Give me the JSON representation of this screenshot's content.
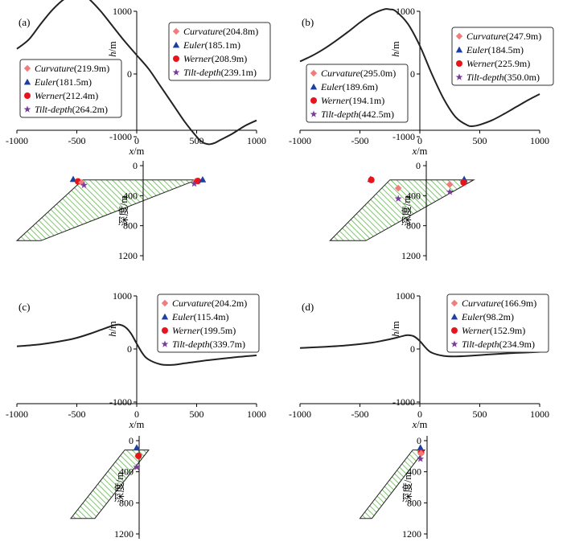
{
  "figure": {
    "x_axis_label_var": "x",
    "x_axis_label_unit": "/m",
    "y_axis_label_var": "h",
    "y_axis_label_unit": "/m",
    "depth_label": "深度/m",
    "x_ticks": [
      -1000,
      -500,
      0,
      500,
      1000
    ],
    "h_ticks": [
      1000,
      0,
      -1000
    ],
    "depth_ticks": [
      0,
      400,
      800,
      1200
    ]
  },
  "colors": {
    "curve": "#222222",
    "curvature": "#f07c7c",
    "euler": "#1f3f9e",
    "werner": "#e8141c",
    "tilt": "#7a3aa0",
    "body_stripe": "#5fb84a",
    "body_outline": "#222222"
  },
  "marker_shapes": {
    "curvature": "diamond",
    "euler": "triangle",
    "werner": "circle",
    "tilt": "star"
  },
  "chart_data": [
    {
      "type": "line",
      "panel": "(a)",
      "xlim": [
        -1000,
        1000
      ],
      "ylim": [
        -1100,
        1250
      ],
      "depth_lim": [
        0,
        1200
      ],
      "x": [
        -1000,
        -900,
        -800,
        -700,
        -600,
        -500,
        -450,
        -400,
        -300,
        -200,
        -100,
        0,
        100,
        200,
        300,
        400,
        500,
        550,
        600,
        650,
        700,
        800,
        900,
        1000
      ],
      "h": [
        400,
        550,
        800,
        1030,
        1200,
        1270,
        1260,
        1200,
        1000,
        760,
        520,
        300,
        80,
        -200,
        -480,
        -760,
        -1000,
        -1090,
        -1120,
        -1100,
        -1050,
        -950,
        -830,
        -740
      ],
      "body": [
        [
          -1000,
          1000
        ],
        [
          -800,
          1000
        ],
        [
          500,
          190
        ],
        [
          -450,
          190
        ]
      ],
      "legends": [
        {
          "entries": [
            {
              "method": "Curvature",
              "value": "(204.8m)"
            },
            {
              "method": "Euler",
              "value": "(185.1m)"
            },
            {
              "method": "Werner",
              "value": "(208.9m)"
            },
            {
              "method": "Tilt-depth",
              "value": "(239.1m)"
            }
          ]
        },
        {
          "entries": [
            {
              "method": "Curvature",
              "value": "(219.9m)"
            },
            {
              "method": "Euler",
              "value": "(181.5m)"
            },
            {
              "method": "Werner",
              "value": "(212.4m)"
            },
            {
              "method": "Tilt-depth",
              "value": "(264.2m)"
            }
          ]
        }
      ],
      "points": [
        {
          "kind": "euler",
          "x": -530,
          "d": 180
        },
        {
          "kind": "werner",
          "x": -490,
          "d": 210
        },
        {
          "kind": "curvature",
          "x": -460,
          "d": 225
        },
        {
          "kind": "tilt",
          "x": -440,
          "d": 260
        },
        {
          "kind": "curvature",
          "x": 490,
          "d": 210
        },
        {
          "kind": "werner",
          "x": 510,
          "d": 205
        },
        {
          "kind": "euler",
          "x": 550,
          "d": 185
        },
        {
          "kind": "tilt",
          "x": 480,
          "d": 240
        }
      ]
    },
    {
      "type": "line",
      "panel": "(b)",
      "xlim": [
        -1000,
        1000
      ],
      "ylim": [
        -1100,
        1250
      ],
      "depth_lim": [
        0,
        1200
      ],
      "x": [
        -1000,
        -900,
        -800,
        -700,
        -600,
        -500,
        -400,
        -300,
        -250,
        -200,
        -100,
        0,
        100,
        200,
        300,
        400,
        450,
        500,
        600,
        700,
        800,
        900,
        1000
      ],
      "h": [
        200,
        290,
        400,
        530,
        670,
        820,
        950,
        1030,
        1030,
        1000,
        800,
        450,
        0,
        -400,
        -690,
        -820,
        -830,
        -810,
        -740,
        -640,
        -530,
        -420,
        -320
      ],
      "body": [
        [
          -750,
          1000
        ],
        [
          -450,
          1000
        ],
        [
          450,
          190
        ],
        [
          -250,
          190
        ]
      ],
      "legends": [
        {
          "entries": [
            {
              "method": "Curvature",
              "value": "(247.9m)"
            },
            {
              "method": "Euler",
              "value": "(184.5m)"
            },
            {
              "method": "Werner",
              "value": "(225.9m)"
            },
            {
              "method": "Tilt-depth",
              "value": "(350.0m)"
            }
          ]
        },
        {
          "entries": [
            {
              "method": "Curvature",
              "value": "(295.0m)"
            },
            {
              "method": "Euler",
              "value": "(189.6m)"
            },
            {
              "method": "Werner",
              "value": "(194.1m)"
            },
            {
              "method": "Tilt-depth",
              "value": "(442.5m)"
            }
          ]
        }
      ],
      "points": [
        {
          "kind": "euler",
          "x": -410,
          "d": 180
        },
        {
          "kind": "werner",
          "x": -405,
          "d": 190
        },
        {
          "kind": "curvature",
          "x": -180,
          "d": 300
        },
        {
          "kind": "tilt",
          "x": -180,
          "d": 440
        },
        {
          "kind": "curvature",
          "x": 250,
          "d": 250
        },
        {
          "kind": "tilt",
          "x": 250,
          "d": 350
        },
        {
          "kind": "euler",
          "x": 370,
          "d": 180
        },
        {
          "kind": "werner",
          "x": 365,
          "d": 225
        }
      ]
    },
    {
      "type": "line",
      "panel": "(c)",
      "xlim": [
        -1000,
        1000
      ],
      "ylim": [
        -1100,
        1250
      ],
      "depth_lim": [
        0,
        1200
      ],
      "x": [
        -1000,
        -800,
        -600,
        -500,
        -400,
        -300,
        -200,
        -150,
        -100,
        -50,
        0,
        50,
        100,
        200,
        300,
        400,
        500,
        600,
        800,
        1000
      ],
      "h": [
        50,
        90,
        160,
        210,
        280,
        360,
        440,
        460,
        420,
        300,
        100,
        -90,
        -200,
        -290,
        -300,
        -270,
        -240,
        -210,
        -160,
        -120
      ],
      "body": [
        [
          -550,
          1000
        ],
        [
          -350,
          1000
        ],
        [
          100,
          120
        ],
        [
          -100,
          120
        ]
      ],
      "legends": [
        {
          "entries": [
            {
              "method": "Curvature",
              "value": "(204.2m)"
            },
            {
              "method": "Euler",
              "value": "(115.4m)"
            },
            {
              "method": "Werner",
              "value": "(199.5m)"
            },
            {
              "method": "Tilt-depth",
              "value": "(339.7m)"
            }
          ]
        }
      ],
      "points": [
        {
          "kind": "euler",
          "x": 0,
          "d": 90
        },
        {
          "kind": "curvature",
          "x": 10,
          "d": 200
        },
        {
          "kind": "werner",
          "x": 15,
          "d": 195
        },
        {
          "kind": "tilt",
          "x": 0,
          "d": 340
        }
      ]
    },
    {
      "type": "line",
      "panel": "(d)",
      "xlim": [
        -1000,
        1000
      ],
      "ylim": [
        -1100,
        1250
      ],
      "depth_lim": [
        0,
        1200
      ],
      "x": [
        -1000,
        -800,
        -600,
        -400,
        -300,
        -200,
        -150,
        -100,
        -50,
        0,
        50,
        100,
        200,
        300,
        400,
        500,
        600,
        800,
        1000
      ],
      "h": [
        20,
        40,
        70,
        120,
        160,
        210,
        240,
        260,
        240,
        150,
        20,
        -70,
        -130,
        -140,
        -130,
        -115,
        -100,
        -75,
        -55
      ],
      "body": [
        [
          -500,
          1000
        ],
        [
          -400,
          1000
        ],
        [
          40,
          120
        ],
        [
          -60,
          120
        ]
      ],
      "legends": [
        {
          "entries": [
            {
              "method": "Curvature",
              "value": "(166.9m)"
            },
            {
              "method": "Euler",
              "value": "(98.2m)"
            },
            {
              "method": "Werner",
              "value": "(152.9m)"
            },
            {
              "method": "Tilt-depth",
              "value": "(234.9m)"
            }
          ]
        }
      ],
      "points": [
        {
          "kind": "euler",
          "x": 5,
          "d": 90
        },
        {
          "kind": "werner",
          "x": 10,
          "d": 155
        },
        {
          "kind": "curvature",
          "x": 10,
          "d": 165
        },
        {
          "kind": "tilt",
          "x": 5,
          "d": 235
        }
      ]
    }
  ]
}
